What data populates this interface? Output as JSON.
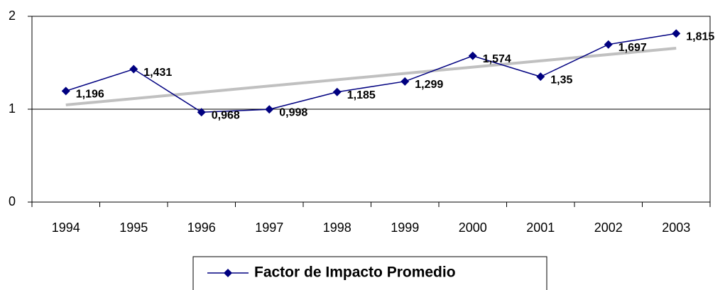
{
  "chart_data": {
    "type": "line",
    "categories": [
      "1994",
      "1995",
      "1996",
      "1997",
      "1998",
      "1999",
      "2000",
      "2001",
      "2002",
      "2003"
    ],
    "series": [
      {
        "name": "Factor de Impacto Promedio",
        "color": "#000080",
        "values": [
          1.196,
          1.431,
          0.968,
          0.998,
          1.185,
          1.299,
          1.574,
          1.35,
          1.697,
          1.815
        ],
        "value_labels": [
          "1,196",
          "1,431",
          "0,968",
          "0,998",
          "1,185",
          "1,299",
          "1,574",
          "1,35",
          "1,697",
          "1,815"
        ]
      }
    ],
    "ylim": [
      0,
      2
    ],
    "yticks": [
      0,
      1,
      2
    ],
    "grid": true,
    "trendline": true,
    "trendline_color": "#c0c0c0",
    "legend": "bottom"
  }
}
